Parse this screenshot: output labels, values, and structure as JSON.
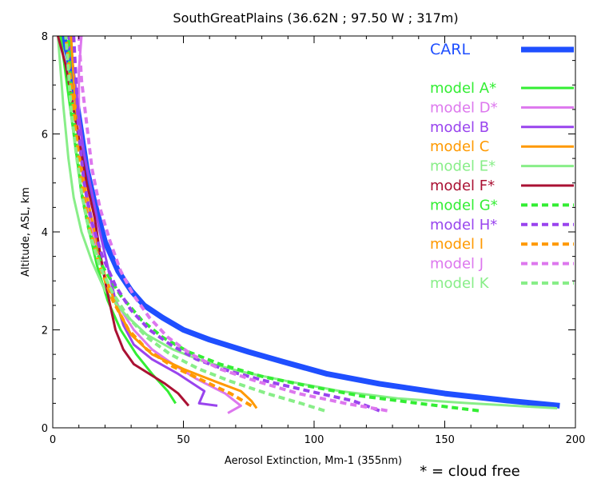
{
  "chart_data": {
    "type": "line",
    "title": "SouthGreatPlains (36.62N ; 97.50 W ; 317m)",
    "xlabel": "Aerosol Extinction, Mm-1 (355nm)",
    "ylabel": "Altitude, ASL, km",
    "footnote": "* = cloud free",
    "xlim": [
      0,
      200
    ],
    "ylim": [
      0,
      8
    ],
    "xticks": [
      0,
      50,
      100,
      150,
      200
    ],
    "yticks": [
      0,
      2,
      4,
      6,
      8
    ],
    "legend_position": "top-right",
    "series": [
      {
        "name": "CARL",
        "color": "#1f4fff",
        "dash": "solid",
        "width": 7,
        "x": [
          194,
          175,
          150,
          125,
          105,
          88,
          75,
          60,
          50,
          42,
          35,
          30,
          25,
          20,
          16,
          13,
          11,
          9,
          7,
          5,
          4
        ],
        "y": [
          0.45,
          0.55,
          0.7,
          0.9,
          1.1,
          1.35,
          1.55,
          1.8,
          2.0,
          2.25,
          2.5,
          2.8,
          3.2,
          3.8,
          4.6,
          5.3,
          6.0,
          6.7,
          7.3,
          7.8,
          8.0
        ]
      },
      {
        "name": "model A*",
        "color": "#33ee33",
        "dash": "solid",
        "width": 3,
        "x": [
          47,
          44,
          38,
          32,
          26,
          21,
          17,
          14,
          11,
          9,
          7,
          5,
          3
        ],
        "y": [
          0.5,
          0.75,
          1.1,
          1.5,
          2.0,
          2.6,
          3.3,
          4.0,
          4.8,
          5.6,
          6.4,
          7.2,
          8.0
        ]
      },
      {
        "name": "model D*",
        "color": "#dd77ee",
        "dash": "solid",
        "width": 3,
        "x": [
          67,
          72,
          66,
          55,
          46,
          38,
          31,
          25,
          20,
          16,
          13,
          11,
          10,
          10,
          11
        ],
        "y": [
          0.3,
          0.45,
          0.7,
          1.0,
          1.3,
          1.6,
          2.0,
          2.5,
          3.1,
          3.8,
          4.6,
          5.5,
          6.4,
          7.3,
          8.0
        ]
      },
      {
        "name": "model B",
        "color": "#9944ee",
        "dash": "solid",
        "width": 3,
        "x": [
          63,
          56,
          58,
          48,
          38,
          31,
          27,
          24,
          21,
          18,
          15,
          12,
          10,
          8,
          6
        ],
        "y": [
          0.45,
          0.5,
          0.75,
          1.1,
          1.4,
          1.7,
          2.1,
          2.6,
          3.3,
          4.0,
          4.8,
          5.6,
          6.4,
          7.3,
          8.0
        ]
      },
      {
        "name": "model C",
        "color": "#ff9900",
        "dash": "solid",
        "width": 3,
        "x": [
          78,
          76,
          72,
          62,
          50,
          38,
          30,
          25,
          20,
          16,
          12,
          9,
          7
        ],
        "y": [
          0.4,
          0.55,
          0.75,
          0.95,
          1.2,
          1.5,
          1.9,
          2.4,
          3.1,
          4.0,
          5.0,
          6.3,
          8.0
        ]
      },
      {
        "name": "model E*",
        "color": "#88ee88",
        "dash": "solid",
        "width": 3,
        "x": [
          193,
          160,
          132,
          110,
          90,
          72,
          58,
          46,
          36,
          28,
          20,
          15,
          11,
          8,
          6,
          4,
          2
        ],
        "y": [
          0.4,
          0.5,
          0.6,
          0.75,
          0.95,
          1.15,
          1.35,
          1.6,
          1.9,
          2.3,
          2.8,
          3.4,
          4.0,
          4.7,
          5.5,
          6.6,
          8.0
        ]
      },
      {
        "name": "model F*",
        "color": "#aa1133",
        "dash": "solid",
        "width": 3,
        "x": [
          52,
          48,
          43,
          37,
          31,
          27,
          24,
          22,
          20,
          18,
          16,
          13,
          11,
          9,
          7,
          5,
          2
        ],
        "y": [
          0.45,
          0.7,
          0.9,
          1.1,
          1.3,
          1.6,
          2.0,
          2.5,
          3.0,
          3.6,
          4.3,
          5.0,
          5.6,
          6.2,
          6.8,
          7.4,
          8.0
        ]
      },
      {
        "name": "model G*",
        "color": "#33ee33",
        "dash": "dashed",
        "width": 4,
        "x": [
          163,
          140,
          118,
          98,
          80,
          64,
          52,
          42,
          34,
          26,
          19,
          14,
          11,
          9,
          7,
          6
        ],
        "y": [
          0.35,
          0.5,
          0.65,
          0.85,
          1.05,
          1.3,
          1.55,
          1.85,
          2.2,
          2.7,
          3.3,
          4.0,
          4.8,
          5.8,
          6.8,
          8.0
        ]
      },
      {
        "name": "model H*",
        "color": "#9944ee",
        "dash": "dashed",
        "width": 4,
        "x": [
          125,
          115,
          98,
          82,
          68,
          55,
          45,
          37,
          30,
          24,
          19,
          15,
          12,
          10,
          9,
          8
        ],
        "y": [
          0.35,
          0.55,
          0.75,
          0.95,
          1.15,
          1.4,
          1.7,
          2.0,
          2.4,
          2.9,
          3.5,
          4.2,
          5.0,
          6.0,
          7.0,
          8.0
        ]
      },
      {
        "name": "model I",
        "color": "#ff9900",
        "dash": "dashed",
        "width": 4,
        "x": [
          76,
          68,
          58,
          46,
          36,
          29,
          23,
          18,
          14,
          11,
          9,
          7,
          5
        ],
        "y": [
          0.45,
          0.7,
          0.95,
          1.25,
          1.6,
          2.0,
          2.6,
          3.3,
          4.1,
          5.0,
          6.0,
          7.0,
          8.0
        ]
      },
      {
        "name": "model J",
        "color": "#dd77ee",
        "dash": "dashed",
        "width": 4,
        "x": [
          128,
          112,
          94,
          78,
          64,
          53,
          44,
          37,
          31,
          26,
          22,
          18,
          15,
          13,
          11,
          10
        ],
        "y": [
          0.35,
          0.5,
          0.7,
          0.95,
          1.2,
          1.5,
          1.85,
          2.25,
          2.7,
          3.2,
          3.8,
          4.5,
          5.3,
          6.2,
          7.1,
          8.0
        ]
      },
      {
        "name": "model K",
        "color": "#88ee88",
        "dash": "dashed",
        "width": 4,
        "x": [
          104,
          95,
          82,
          68,
          56,
          45,
          36,
          29,
          23,
          18,
          14,
          11,
          9,
          7,
          6,
          5
        ],
        "y": [
          0.35,
          0.5,
          0.7,
          0.95,
          1.2,
          1.5,
          1.85,
          2.25,
          2.75,
          3.3,
          4.0,
          4.8,
          5.6,
          6.5,
          7.3,
          8.0
        ]
      }
    ]
  }
}
